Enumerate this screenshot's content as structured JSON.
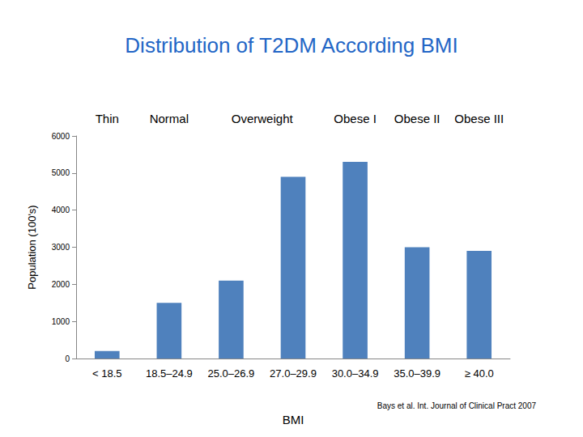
{
  "chart_data": {
    "type": "bar",
    "title": "Distribution of T2DM According BMI",
    "xlabel": "BMI",
    "ylabel": "Population (100's)",
    "categories": [
      "< 18.5",
      "18.5–24.9",
      "25.0–26.9",
      "27.0–29.9",
      "30.0–34.9",
      "35.0–39.9",
      "≥ 40.0"
    ],
    "category_groups": [
      "Thin",
      "Normal",
      "Overweight",
      null,
      "Obese I",
      "Obese II",
      "Obese III"
    ],
    "values": [
      200,
      1500,
      2100,
      4900,
      5300,
      3000,
      2900
    ],
    "color": "#4f81bd",
    "ylim": [
      0,
      6000
    ],
    "yticks": [
      0,
      1000,
      2000,
      3000,
      4000,
      5000,
      6000
    ],
    "grid": false,
    "annotations": [
      "Bays et al. Int. Journal of Clinical Pract 2007"
    ]
  }
}
